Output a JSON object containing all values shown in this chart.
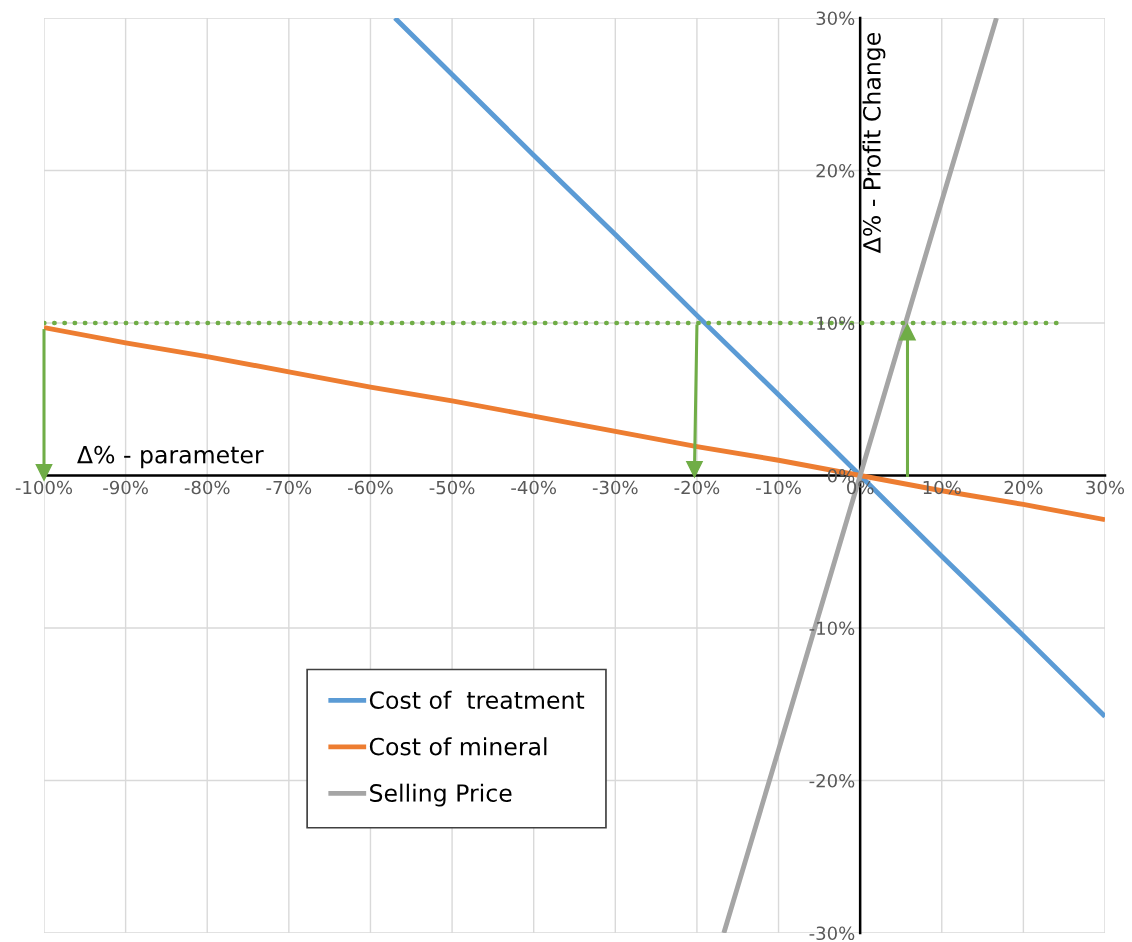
{
  "chart_data": {
    "type": "line",
    "xlabel": "Δ% - parameter",
    "ylabel": "Δ% - Profit Change",
    "xlim": [
      -100,
      30
    ],
    "ylim": [
      -30,
      30
    ],
    "xticks": [
      {
        "value": -100,
        "label": "-100%"
      },
      {
        "value": -90,
        "label": "-90%"
      },
      {
        "value": -80,
        "label": "-80%"
      },
      {
        "value": -70,
        "label": "-70%"
      },
      {
        "value": -60,
        "label": "-60%"
      },
      {
        "value": -50,
        "label": "-50%"
      },
      {
        "value": -40,
        "label": "-40%"
      },
      {
        "value": -30,
        "label": "-30%"
      },
      {
        "value": -20,
        "label": "-20%"
      },
      {
        "value": -10,
        "label": "-10%"
      },
      {
        "value": 0,
        "label": "0%"
      },
      {
        "value": 10,
        "label": "10%"
      },
      {
        "value": 20,
        "label": "20%"
      },
      {
        "value": 30,
        "label": "30%"
      }
    ],
    "yticks": [
      {
        "value": -30,
        "label": "-30%"
      },
      {
        "value": -20,
        "label": "-20%"
      },
      {
        "value": -10,
        "label": "-10%"
      },
      {
        "value": 0,
        "label": "0%"
      },
      {
        "value": 10,
        "label": "10%"
      },
      {
        "value": 20,
        "label": "20%"
      },
      {
        "value": 30,
        "label": "30%"
      }
    ],
    "grid": true,
    "legend": "bottom left",
    "marker": "none",
    "line_style": "solid",
    "series": [
      {
        "name": "Cost of  treatment",
        "color": "#5b9bd5",
        "x": [
          -57,
          -50,
          -40,
          -30,
          -20,
          -10,
          0,
          10,
          20,
          30
        ],
        "values": [
          30,
          26.3,
          21,
          15.8,
          10.5,
          5.3,
          0,
          -5.3,
          -10.5,
          -15.8
        ]
      },
      {
        "name": "Cost of mineral",
        "color": "#ed7d31",
        "x": [
          -100,
          -90,
          -80,
          -70,
          -60,
          -50,
          -40,
          -30,
          -20,
          -10,
          0,
          10,
          20,
          30
        ],
        "values": [
          9.7,
          8.7,
          7.8,
          6.8,
          5.8,
          4.9,
          3.9,
          2.9,
          1.9,
          1.0,
          0,
          -1.0,
          -1.9,
          -2.9
        ]
      },
      {
        "name": "Selling Price",
        "color": "#a5a5a5",
        "x": [
          -16.7,
          -10,
          0,
          10,
          16.7
        ],
        "values": [
          -30,
          -18,
          0,
          18,
          30
        ]
      },
      {
        "color": "#70ad47",
        "line_style": "dotted",
        "x": [
          -100,
          25
        ],
        "values": [
          10,
          10
        ]
      },
      {
        "color": "#70ad47",
        "marker": "triangle",
        "x": [
          -100,
          -100
        ],
        "values": [
          9.5,
          0.2
        ]
      },
      {
        "color": "#70ad47",
        "marker": "triangle",
        "x": [
          -20,
          -20.3
        ],
        "values": [
          9.8,
          0.4
        ]
      },
      {
        "color": "#70ad47",
        "marker": "triangle",
        "x": [
          5.8,
          5.8
        ],
        "values": [
          0,
          9.4
        ]
      }
    ]
  }
}
